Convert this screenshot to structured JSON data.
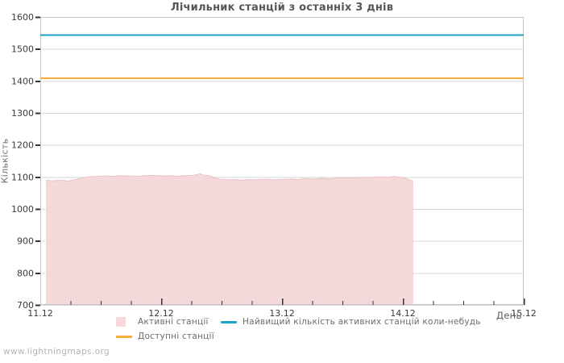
{
  "page": {
    "watermark": "www.lightningmaps.org"
  },
  "chart_data": {
    "type": "area",
    "title": "Лічильник станцій з останніх 3 днів",
    "xlabel": "День",
    "ylabel": "Кількість",
    "ylim": [
      700,
      1600
    ],
    "y_ticks": [
      700,
      800,
      900,
      1000,
      1100,
      1200,
      1300,
      1400,
      1500,
      1600
    ],
    "xlim_days": [
      0,
      4
    ],
    "x_ticks": [
      {
        "day": 0,
        "label": "11.12"
      },
      {
        "day": 1,
        "label": "12.12"
      },
      {
        "day": 2,
        "label": "13.12"
      },
      {
        "day": 3,
        "label": "14.12"
      },
      {
        "day": 4,
        "label": "15.12"
      }
    ],
    "x_minor_tick_interval_days": 0.25,
    "grid": "horizontal",
    "legend_position": "bottom",
    "colors": {
      "grid": "#d6d6d6",
      "border": "#c6c6c6",
      "tick": "#333333",
      "tick_label": "#3a3a3a"
    },
    "series": [
      {
        "id": "active-stations",
        "name": "Активні станції",
        "type": "area",
        "color": "#f4d8da",
        "edge_color": "#eac3c8",
        "points": [
          [
            0.047,
            1090
          ],
          [
            0.1,
            1088
          ],
          [
            0.17,
            1090
          ],
          [
            0.23,
            1087
          ],
          [
            0.29,
            1092
          ],
          [
            0.35,
            1097
          ],
          [
            0.4,
            1100
          ],
          [
            0.47,
            1102
          ],
          [
            0.53,
            1103
          ],
          [
            0.6,
            1102
          ],
          [
            0.67,
            1104
          ],
          [
            0.73,
            1103
          ],
          [
            0.8,
            1102
          ],
          [
            0.87,
            1104
          ],
          [
            0.93,
            1105
          ],
          [
            1.0,
            1103
          ],
          [
            1.07,
            1104
          ],
          [
            1.13,
            1102
          ],
          [
            1.2,
            1104
          ],
          [
            1.27,
            1105
          ],
          [
            1.32,
            1110
          ],
          [
            1.35,
            1106
          ],
          [
            1.4,
            1104
          ],
          [
            1.44,
            1098
          ],
          [
            1.48,
            1093
          ],
          [
            1.53,
            1091
          ],
          [
            1.6,
            1092
          ],
          [
            1.67,
            1090
          ],
          [
            1.73,
            1092
          ],
          [
            1.8,
            1091
          ],
          [
            1.87,
            1093
          ],
          [
            1.93,
            1091
          ],
          [
            2.0,
            1092
          ],
          [
            2.07,
            1094
          ],
          [
            2.13,
            1092
          ],
          [
            2.2,
            1095
          ],
          [
            2.27,
            1093
          ],
          [
            2.33,
            1096
          ],
          [
            2.4,
            1094
          ],
          [
            2.47,
            1097
          ],
          [
            2.53,
            1098
          ],
          [
            2.6,
            1097
          ],
          [
            2.67,
            1099
          ],
          [
            2.73,
            1098
          ],
          [
            2.8,
            1100
          ],
          [
            2.87,
            1099
          ],
          [
            2.93,
            1101
          ],
          [
            3.0,
            1098
          ],
          [
            3.04,
            1093
          ],
          [
            3.087,
            1087
          ]
        ]
      },
      {
        "id": "highest-ever",
        "name": "Найвищий кількість активних станцій коли-небудь",
        "type": "line",
        "color": "#1ba3c6",
        "points": [
          [
            0,
            1545
          ],
          [
            4,
            1545
          ]
        ]
      },
      {
        "id": "available-stations",
        "name": "Доступні станції",
        "type": "line",
        "color": "#f5ae3d",
        "points": [
          [
            0,
            1410
          ],
          [
            4,
            1410
          ]
        ]
      }
    ]
  },
  "legend": {
    "items": [
      {
        "label": "Активні станції",
        "swatch": "area"
      },
      {
        "label": "Найвищий кількість активних станцій коли-небудь",
        "swatch": "line"
      },
      {
        "label": "Доступні станції",
        "swatch": "line"
      }
    ]
  }
}
